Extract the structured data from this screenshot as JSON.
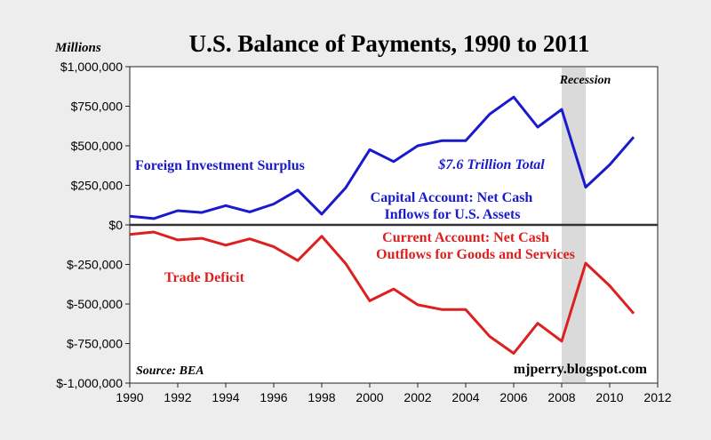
{
  "chart_data": {
    "type": "line",
    "title": "U.S. Balance of Payments, 1990 to 2011",
    "ylabel": "Millions",
    "xlim": [
      1990,
      2012
    ],
    "ylim": [
      -1000000,
      1000000
    ],
    "x_ticks": [
      1990,
      1992,
      1994,
      1996,
      1998,
      2000,
      2002,
      2004,
      2006,
      2008,
      2010,
      2012
    ],
    "x_tick_labels": [
      "1990",
      "1992",
      "1994",
      "1996",
      "1998",
      "2000",
      "2002",
      "2004",
      "2006",
      "2008",
      "2010",
      "2012"
    ],
    "y_ticks": [
      1000000,
      750000,
      500000,
      250000,
      0,
      -250000,
      -500000,
      -750000,
      -1000000
    ],
    "y_tick_labels": [
      "$1,000,000",
      "$750,000",
      "$500,000",
      "$250,000",
      "$0",
      "$-250,000",
      "$-500,000",
      "$-750,000",
      "$-1,000,000"
    ],
    "x": [
      1990,
      1991,
      1992,
      1993,
      1994,
      1995,
      1996,
      1997,
      1998,
      1999,
      2000,
      2001,
      2002,
      2003,
      2004,
      2005,
      2006,
      2007,
      2008,
      2009,
      2010,
      2011
    ],
    "series": [
      {
        "color": "#1a1acc",
        "values": [
          55000,
          40000,
          90000,
          78000,
          122000,
          82000,
          132000,
          220000,
          68000,
          235000,
          475000,
          400000,
          500000,
          532000,
          532000,
          700000,
          808000,
          618000,
          730000,
          238000,
          380000,
          555000
        ]
      },
      {
        "color": "#dd1f1f",
        "values": [
          -60000,
          -45000,
          -95000,
          -85000,
          -128000,
          -88000,
          -138000,
          -225000,
          -72000,
          -245000,
          -480000,
          -405000,
          -505000,
          -535000,
          -535000,
          -705000,
          -812000,
          -622000,
          -735000,
          -242000,
          -385000,
          -560000
        ]
      }
    ],
    "recession": {
      "label": "Recession",
      "start": 2008,
      "end": 2009
    },
    "annotations": [
      {
        "id": "foreign",
        "text": "Foreign Investment Surplus",
        "color": "#1a1acc"
      },
      {
        "id": "total",
        "text": "$7.6 Trillion Total",
        "color": "#1a1acc"
      },
      {
        "id": "capital1",
        "text": "Capital Account: Net Cash",
        "color": "#1a1acc"
      },
      {
        "id": "capital2",
        "text": "Inflows for U.S. Assets",
        "color": "#1a1acc"
      },
      {
        "id": "current1",
        "text": "Current Account: Net Cash",
        "color": "#dd1f1f"
      },
      {
        "id": "current2",
        "text": "Outflows for Goods and Services",
        "color": "#dd1f1f"
      },
      {
        "id": "trade",
        "text": "Trade Deficit",
        "color": "#dd1f1f"
      }
    ],
    "source": "Source: BEA",
    "credit": "mjperry.blogspot.com",
    "grid": false
  }
}
